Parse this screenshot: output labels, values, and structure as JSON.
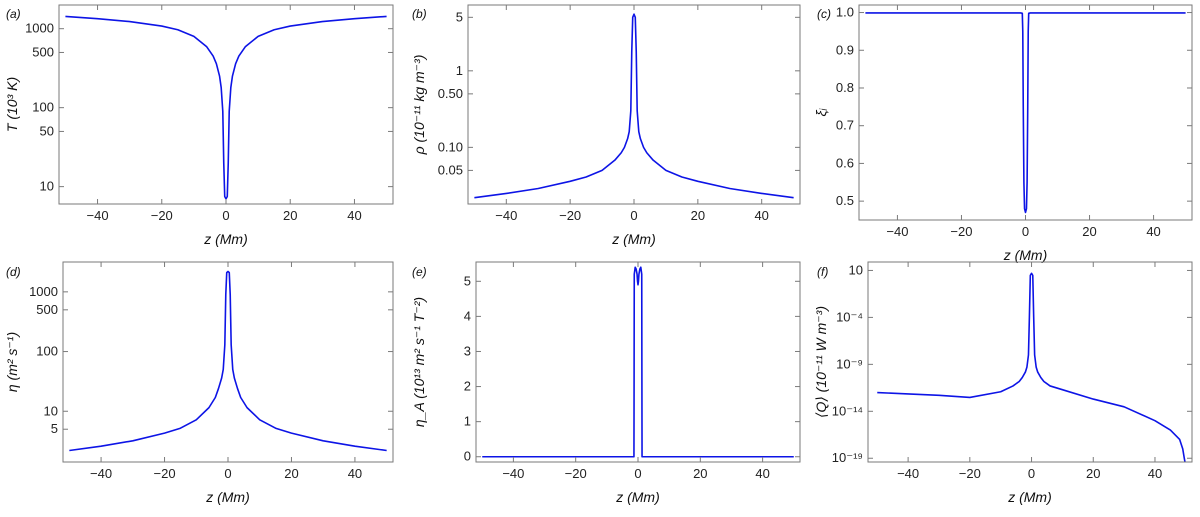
{
  "figure": {
    "colors": {
      "curve": "#0d14e6",
      "frame": "#7a7a7a"
    }
  },
  "chart_data": [
    {
      "id": "a",
      "panel_label": "(a)",
      "type": "line",
      "title": "",
      "xlabel": "z (Mm)",
      "ylabel": "T (10³ K)",
      "xlim": [
        -52,
        52
      ],
      "xticks": [
        -40,
        -20,
        0,
        20,
        40
      ],
      "xtick_labels": [
        "−40",
        "−20",
        "0",
        "20",
        "40"
      ],
      "yscale": "log",
      "ylim_log": [
        0.78,
        3.3
      ],
      "yticks": [
        10,
        50,
        100,
        500,
        1000
      ],
      "ytick_labels": [
        "10",
        "50",
        "100",
        "500",
        "1000"
      ],
      "series": [
        {
          "x": [
            -50,
            -40,
            -30,
            -20,
            -15,
            -10,
            -6,
            -4,
            -3,
            -2,
            -1.5,
            -1,
            -0.7,
            -0.4,
            0,
            0.4,
            0.7,
            1,
            1.5,
            2,
            3,
            4,
            6,
            10,
            15,
            20,
            30,
            40,
            50
          ],
          "y": [
            1430,
            1340,
            1230,
            1080,
            970,
            800,
            590,
            450,
            360,
            250,
            180,
            90,
            20,
            7.5,
            7,
            7.5,
            20,
            90,
            180,
            250,
            360,
            450,
            590,
            800,
            970,
            1080,
            1230,
            1340,
            1430
          ]
        }
      ]
    },
    {
      "id": "b",
      "panel_label": "(b)",
      "type": "line",
      "title": "",
      "xlabel": "z (Mm)",
      "ylabel": "ρ (10⁻¹¹ kg m⁻³)",
      "xlim": [
        -52,
        52
      ],
      "xticks": [
        -40,
        -20,
        0,
        20,
        40
      ],
      "xtick_labels": [
        "−40",
        "−20",
        "0",
        "20",
        "40"
      ],
      "yscale": "log",
      "ylim_log": [
        -1.74,
        0.86
      ],
      "yticks": [
        0.05,
        0.1,
        0.5,
        1,
        5
      ],
      "ytick_labels": [
        "0.05",
        "0.10",
        "0.50",
        "1",
        "5"
      ],
      "series": [
        {
          "x": [
            -50,
            -40,
            -30,
            -20,
            -15,
            -10,
            -6,
            -4,
            -3,
            -2,
            -1.5,
            -1,
            -0.7,
            -0.4,
            0,
            0.4,
            0.7,
            1,
            1.5,
            2,
            3,
            4,
            6,
            10,
            15,
            20,
            30,
            40,
            50
          ],
          "y": [
            0.022,
            0.025,
            0.029,
            0.036,
            0.041,
            0.05,
            0.068,
            0.085,
            0.1,
            0.13,
            0.16,
            0.3,
            1.8,
            5.0,
            5.5,
            5.0,
            1.8,
            0.3,
            0.16,
            0.13,
            0.1,
            0.085,
            0.068,
            0.05,
            0.041,
            0.036,
            0.029,
            0.025,
            0.022
          ]
        }
      ]
    },
    {
      "id": "c",
      "panel_label": "(c)",
      "type": "line",
      "title": "",
      "xlabel": "z (Mm)",
      "ylabel": "ξᵢ",
      "xlim": [
        -52,
        52
      ],
      "xticks": [
        -40,
        -20,
        0,
        20,
        40
      ],
      "xtick_labels": [
        "−40",
        "−20",
        "0",
        "20",
        "40"
      ],
      "yscale": "linear",
      "ylim": [
        0.45,
        1.02
      ],
      "yticks": [
        0.5,
        0.6,
        0.7,
        0.8,
        0.9,
        1.0
      ],
      "ytick_labels": [
        "0.5",
        "0.6",
        "0.7",
        "0.8",
        "0.9",
        "1.0"
      ],
      "series": [
        {
          "x": [
            -50,
            -1.5,
            -1,
            -0.85,
            -0.7,
            -0.5,
            -0.3,
            0,
            0.3,
            0.5,
            0.7,
            0.85,
            1,
            1.5,
            50
          ],
          "y": [
            0.999,
            0.999,
            0.998,
            0.95,
            0.75,
            0.55,
            0.48,
            0.47,
            0.48,
            0.55,
            0.75,
            0.95,
            0.998,
            0.999,
            0.999
          ]
        }
      ]
    },
    {
      "id": "d",
      "panel_label": "(d)",
      "type": "line",
      "title": "",
      "xlabel": "z (Mm)",
      "ylabel": "η (m² s⁻¹)",
      "xlim": [
        -52,
        52
      ],
      "xticks": [
        -40,
        -20,
        0,
        20,
        40
      ],
      "xtick_labels": [
        "−40",
        "−20",
        "0",
        "20",
        "40"
      ],
      "yscale": "log",
      "ylim_log": [
        0.15,
        3.5
      ],
      "yticks": [
        5,
        10,
        100,
        500,
        1000
      ],
      "ytick_labels": [
        "5",
        "10",
        "100",
        "500",
        "1000"
      ],
      "series": [
        {
          "x": [
            -50,
            -40,
            -30,
            -20,
            -15,
            -10,
            -6,
            -4,
            -3,
            -2,
            -1.5,
            -1,
            -0.7,
            -0.4,
            0,
            0.4,
            0.7,
            1,
            1.5,
            2,
            3,
            4,
            6,
            10,
            15,
            20,
            30,
            40,
            50
          ],
          "y": [
            2.2,
            2.6,
            3.2,
            4.3,
            5.2,
            7.2,
            11.5,
            17,
            24,
            36,
            50,
            130,
            900,
            2100,
            2200,
            2100,
            900,
            130,
            50,
            36,
            24,
            17,
            11.5,
            7.2,
            5.2,
            4.3,
            3.2,
            2.6,
            2.2
          ]
        }
      ]
    },
    {
      "id": "e",
      "panel_label": "(e)",
      "type": "line",
      "title": "",
      "xlabel": "z (Mm)",
      "ylabel": "η_A (10¹³ m² s⁻¹ T⁻²)",
      "xlim": [
        -52,
        52
      ],
      "xticks": [
        -40,
        -20,
        0,
        20,
        40
      ],
      "xtick_labels": [
        "−40",
        "−20",
        "0",
        "20",
        "40"
      ],
      "yscale": "linear",
      "ylim": [
        -0.15,
        5.55
      ],
      "yticks": [
        0,
        1,
        2,
        3,
        4,
        5
      ],
      "ytick_labels": [
        "0",
        "1",
        "2",
        "3",
        "4",
        "5"
      ],
      "series": [
        {
          "x": [
            -50,
            -1.3,
            -1.25,
            -1.2,
            -0.9,
            -0.6,
            -0.3,
            -0.15,
            0,
            0.15,
            0.3,
            0.6,
            0.9,
            1.2,
            1.25,
            1.3,
            50
          ],
          "y": [
            0,
            0,
            2.5,
            5.2,
            5.4,
            5.35,
            5.2,
            5.0,
            4.9,
            5.0,
            5.2,
            5.35,
            5.4,
            5.2,
            2.5,
            0,
            0
          ]
        }
      ]
    },
    {
      "id": "f",
      "panel_label": "(f)",
      "type": "line",
      "title": "",
      "xlabel": "z (Mm)",
      "ylabel": "⟨Q⟩ (10⁻¹¹ W m⁻³)",
      "xlim": [
        -53,
        52
      ],
      "xticks": [
        -40,
        -20,
        0,
        20,
        40
      ],
      "xtick_labels": [
        "−40",
        "−20",
        "0",
        "20",
        "40"
      ],
      "yscale": "log",
      "ylim_log": [
        -19.4,
        1.9
      ],
      "yticks": [
        1e-19,
        1e-14,
        1e-09,
        0.0001,
        10
      ],
      "ytick_labels": [
        "10⁻¹⁹",
        "10⁻¹⁴",
        "10⁻⁹",
        "10⁻⁴",
        "10"
      ],
      "series": [
        {
          "x": [
            -50,
            -40,
            -30,
            -20,
            -10,
            -6,
            -4,
            -3,
            -2,
            -1.5,
            -1,
            -0.7,
            -0.4,
            0,
            0.4,
            0.7,
            1,
            1.5,
            2,
            3,
            4,
            6,
            10,
            20,
            30,
            40,
            45,
            48,
            49,
            49.5,
            50
          ],
          "y": [
            1e-12,
            7e-13,
            5e-13,
            3e-13,
            1.2e-12,
            5e-12,
            1.5e-11,
            4e-11,
            1.5e-10,
            5e-10,
            1e-08,
            0.0001,
            3,
            5,
            3,
            0.0001,
            1e-08,
            5e-10,
            1.5e-10,
            4e-11,
            1.5e-11,
            5e-12,
            2e-12,
            2e-13,
            3e-14,
            1e-15,
            1e-16,
            1e-17,
            1e-18,
            1e-19,
            1e-20
          ]
        }
      ]
    }
  ]
}
